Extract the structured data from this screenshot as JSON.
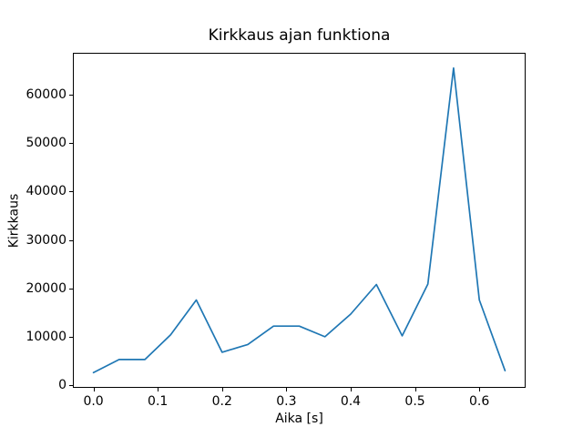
{
  "figure": {
    "background": "#ffffff",
    "frame_color": "#000000",
    "text_color": "#000000"
  },
  "chart_data": {
    "type": "line",
    "title": "Kirkkaus ajan funktiona",
    "xlabel": "Aika [s]",
    "ylabel": "Kirkkaus",
    "line_color": "#1f77b4",
    "grid": false,
    "legend": false,
    "x": [
      0.0,
      0.04,
      0.08,
      0.12,
      0.16,
      0.2,
      0.24,
      0.28,
      0.32,
      0.36,
      0.4,
      0.44,
      0.48,
      0.52,
      0.56,
      0.6,
      0.64
    ],
    "y": [
      2600,
      5300,
      5300,
      10400,
      17600,
      6800,
      8400,
      12200,
      12200,
      10000,
      14700,
      20800,
      10200,
      20900,
      65535,
      17600,
      3000
    ],
    "xlim": [
      -0.032,
      0.672
    ],
    "ylim": [
      -547,
      68682
    ],
    "xticks": [
      0.0,
      0.1,
      0.2,
      0.3,
      0.4,
      0.5,
      0.6
    ],
    "xtick_labels": [
      "0.0",
      "0.1",
      "0.2",
      "0.3",
      "0.4",
      "0.5",
      "0.6"
    ],
    "yticks": [
      0,
      10000,
      20000,
      30000,
      40000,
      50000,
      60000
    ],
    "ytick_labels": [
      "0",
      "10000",
      "20000",
      "30000",
      "40000",
      "50000",
      "60000"
    ]
  }
}
